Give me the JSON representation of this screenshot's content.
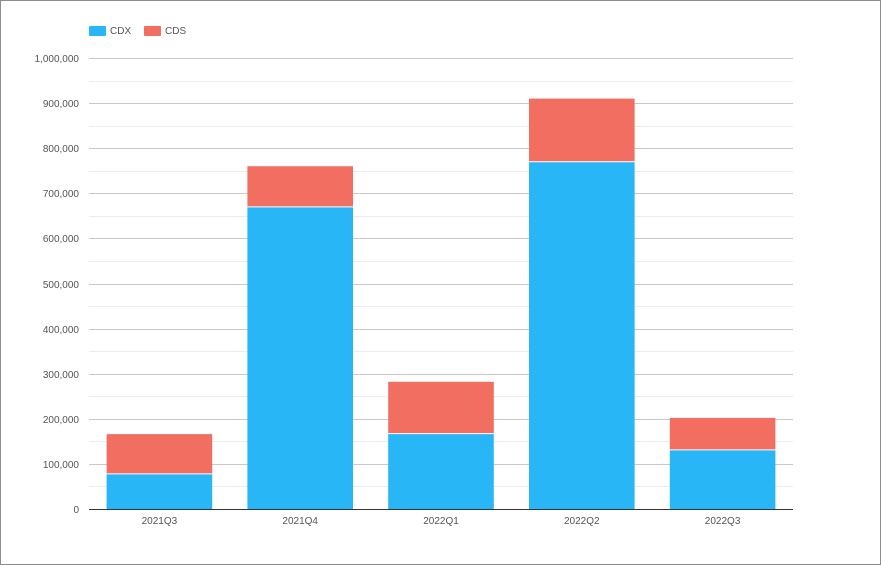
{
  "chart_data": {
    "type": "bar",
    "stacked": true,
    "title": "",
    "xlabel": "",
    "ylabel": "",
    "categories": [
      "2021Q3",
      "2021Q4",
      "2022Q1",
      "2022Q2",
      "2022Q3"
    ],
    "series": [
      {
        "name": "CDX",
        "color": "#29B6F6",
        "values": [
          78000,
          670000,
          167000,
          770000,
          131000
        ]
      },
      {
        "name": "CDS",
        "color": "#F26E60",
        "values": [
          88000,
          90000,
          115000,
          140000,
          71000
        ]
      }
    ],
    "ylim": [
      0,
      1000000
    ],
    "y_ticks": [
      "0",
      "100,000",
      "200,000",
      "300,000",
      "400,000",
      "500,000",
      "600,000",
      "700,000",
      "800,000",
      "900,000",
      "1,000,000"
    ],
    "grid": true,
    "legend_position": "top-left"
  }
}
